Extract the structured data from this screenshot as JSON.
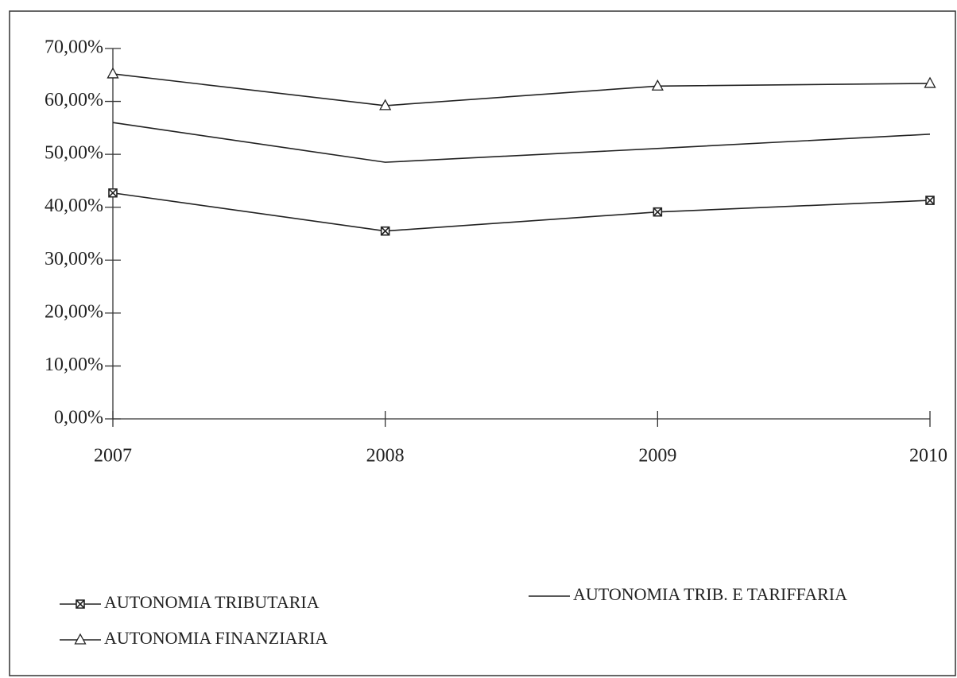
{
  "chart_data": {
    "type": "line",
    "categories": [
      "2007",
      "2008",
      "2009",
      "2010"
    ],
    "series": [
      {
        "name": "AUTONOMIA TRIBUTARIA",
        "color": "#222222",
        "marker": "square-x",
        "values": [
          42.7,
          35.5,
          39.1,
          41.3
        ]
      },
      {
        "name": "AUTONOMIA TRIB. E TARIFFARIA",
        "color": "#222222",
        "marker": "none",
        "values": [
          56.0,
          48.5,
          51.1,
          53.8
        ]
      },
      {
        "name": "AUTONOMIA FINANZIARIA",
        "color": "#222222",
        "marker": "triangle",
        "values": [
          65.2,
          59.2,
          62.9,
          63.4
        ]
      }
    ],
    "ylim": [
      0,
      70
    ],
    "yticks": [
      {
        "value": 0,
        "label": "0,00%"
      },
      {
        "value": 10,
        "label": "10,00%"
      },
      {
        "value": 20,
        "label": "20,00%"
      },
      {
        "value": 30,
        "label": "30,00%"
      },
      {
        "value": 40,
        "label": "40,00%"
      },
      {
        "value": 50,
        "label": "50,00%"
      },
      {
        "value": 60,
        "label": "60,00%"
      },
      {
        "value": 70,
        "label": "70,00%"
      }
    ],
    "grid": false
  }
}
